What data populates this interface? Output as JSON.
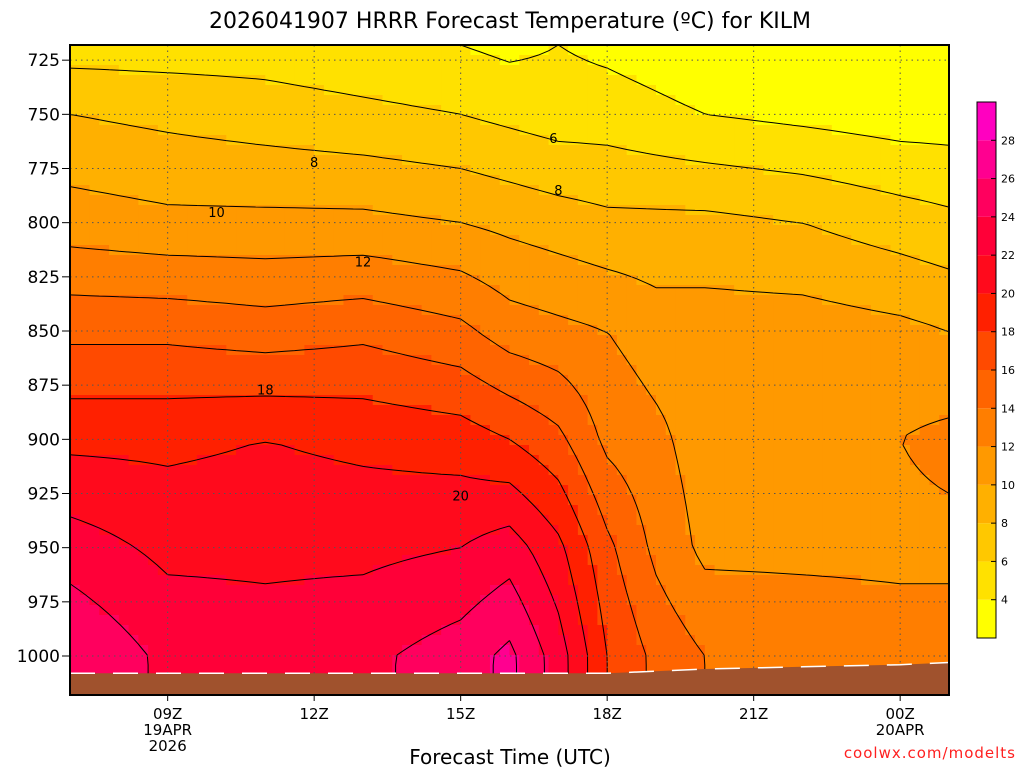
{
  "chart_data": {
    "type": "contour",
    "title": "2026041907 HRRR Forecast Temperature (ºC) for KILM",
    "xlabel": "Forecast Time (UTC)",
    "ylabel": "",
    "y_axis": {
      "units": "hPa",
      "inverted": true,
      "ticks": [
        "725",
        "750",
        "775",
        "800",
        "825",
        "850",
        "875",
        "900",
        "925",
        "950",
        "975",
        "1000"
      ],
      "range": [
        1018,
        718
      ]
    },
    "x_axis": {
      "range_hours": [
        7,
        25
      ],
      "ticks": [
        {
          "hour": 9,
          "lines": [
            "09Z",
            "19APR",
            "2026"
          ]
        },
        {
          "hour": 12,
          "lines": [
            "12Z"
          ]
        },
        {
          "hour": 15,
          "lines": [
            "15Z"
          ]
        },
        {
          "hour": 18,
          "lines": [
            "18Z"
          ]
        },
        {
          "hour": 21,
          "lines": [
            "21Z"
          ]
        },
        {
          "hour": 24,
          "lines": [
            "00Z",
            "20APR"
          ]
        }
      ]
    },
    "grid": true,
    "contour_interval": 2,
    "contour_labels": [
      {
        "value": "6",
        "hour": 16.9,
        "p": 761
      },
      {
        "value": "8",
        "hour": 12.0,
        "p": 772
      },
      {
        "value": "8",
        "hour": 17.0,
        "p": 785
      },
      {
        "value": "10",
        "hour": 10.0,
        "p": 795
      },
      {
        "value": "12",
        "hour": 13.0,
        "p": 818
      },
      {
        "value": "18",
        "hour": 11.0,
        "p": 877
      },
      {
        "value": "20",
        "hour": 15.0,
        "p": 926
      }
    ],
    "surface_pressure_hPa": {
      "hours": [
        7,
        9,
        12,
        15,
        18,
        20,
        22,
        24,
        25
      ],
      "values": [
        1008,
        1008,
        1008,
        1008,
        1008,
        1006,
        1005,
        1004,
        1003
      ]
    },
    "temperature_profiles_C": {
      "pressure_levels": [
        718,
        750,
        800,
        850,
        900,
        950,
        1000
      ],
      "hour_columns": [
        7,
        9,
        11,
        13,
        15,
        16,
        17,
        18,
        19,
        20,
        22,
        24,
        25
      ],
      "values": [
        [
          5,
          5,
          5,
          4.5,
          4,
          3.5,
          4,
          3.5,
          3,
          2.5,
          2,
          1.5,
          1.5
        ],
        [
          8,
          7.5,
          7,
          6.5,
          6,
          5.5,
          5,
          5,
          4.5,
          4,
          3.5,
          3,
          3
        ],
        [
          11,
          10.5,
          10.5,
          10.5,
          10,
          9.5,
          9,
          8.5,
          8.5,
          8.5,
          8,
          7,
          6.5
        ],
        [
          15.5,
          15.5,
          15,
          15.5,
          14.5,
          13,
          12.5,
          12,
          11,
          11,
          11,
          10.5,
          10
        ],
        [
          19.5,
          19.5,
          20,
          19.5,
          19,
          18,
          16.5,
          13.5,
          12.5,
          11,
          11,
          12,
          12.5
        ],
        [
          23,
          21.5,
          21.5,
          21.5,
          22,
          23,
          20.5,
          16.5,
          13.5,
          11.5,
          11.5,
          11.5,
          11.5
        ],
        [
          26,
          23.5,
          23,
          23.5,
          25,
          26.5,
          23,
          18,
          15.5,
          14,
          13.5,
          13,
          13
        ]
      ]
    },
    "colorbar": {
      "ticks": [
        "4",
        "6",
        "8",
        "10",
        "12",
        "14",
        "16",
        "18",
        "20",
        "22",
        "24",
        "26",
        "28"
      ],
      "min": 2,
      "max": 30,
      "colors": [
        {
          "from": 2,
          "to": 4,
          "color": "#ffff00"
        },
        {
          "from": 4,
          "to": 6,
          "color": "#ffe100"
        },
        {
          "from": 6,
          "to": 8,
          "color": "#ffc800"
        },
        {
          "from": 8,
          "to": 10,
          "color": "#ffb000"
        },
        {
          "from": 10,
          "to": 12,
          "color": "#ff9900"
        },
        {
          "from": 12,
          "to": 14,
          "color": "#ff7e00"
        },
        {
          "from": 14,
          "to": 16,
          "color": "#ff6400"
        },
        {
          "from": 16,
          "to": 18,
          "color": "#ff4a00"
        },
        {
          "from": 18,
          "to": 20,
          "color": "#ff2000"
        },
        {
          "from": 20,
          "to": 22,
          "color": "#ff0a1c"
        },
        {
          "from": 22,
          "to": 24,
          "color": "#ff0038"
        },
        {
          "from": 24,
          "to": 26,
          "color": "#ff005e"
        },
        {
          "from": 26,
          "to": 28,
          "color": "#ff0090"
        },
        {
          "from": 28,
          "to": 30,
          "color": "#ff00c0"
        }
      ]
    },
    "ground_color": "#a0522d",
    "credit": "coolwx.com/modelts",
    "credit_color": "#ff2020"
  }
}
